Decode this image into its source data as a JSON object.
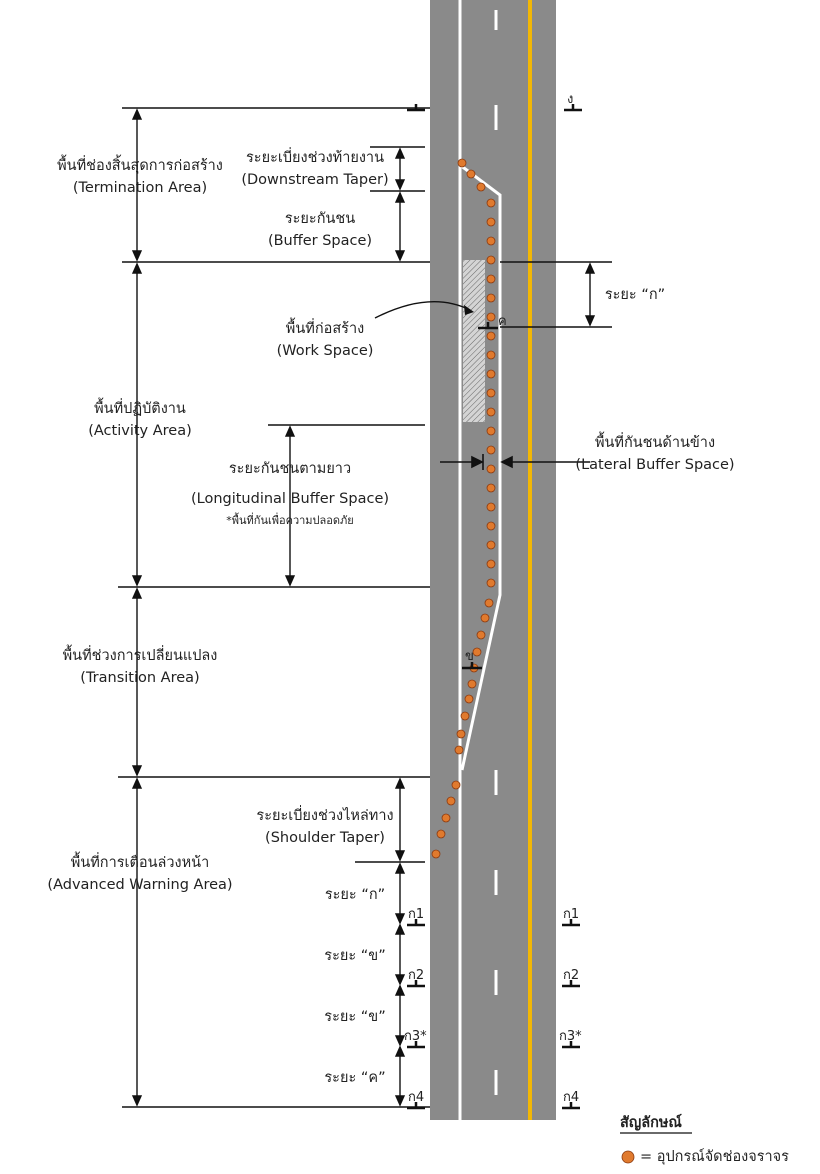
{
  "zones": {
    "termination": {
      "th": "พื้นที่ช่องสิ้นสุดการก่อสร้าง",
      "en": "(Termination Area)"
    },
    "activity": {
      "th": "พื้นที่ปฏิบัติงาน",
      "en": "(Activity Area)"
    },
    "transition": {
      "th": "พื้นที่ช่วงการเปลี่ยนแปลง",
      "en": "(Transition Area)"
    },
    "advanced": {
      "th": "พื้นที่การเตือนล่วงหน้า",
      "en": "(Advanced Warning Area)"
    }
  },
  "sub": {
    "downstream": {
      "th": "ระยะเบี่ยงช่วงท้ายงาน",
      "en": "(Downstream Taper)"
    },
    "buffer": {
      "th": "ระยะกันชน",
      "en": "(Buffer Space)"
    },
    "work": {
      "th": "พื้นที่ก่อสร้าง",
      "en": "(Work Space)"
    },
    "longitudinal": {
      "th": "ระยะกันชนตามยาว",
      "en": "(Longitudinal Buffer Space)",
      "note": "*พื้นที่กันเพื่อความปลอดภัย"
    },
    "lateral": {
      "th": "พื้นที่กันชนด้านข้าง",
      "en": "(Lateral Buffer Space)"
    },
    "shoulder": {
      "th": "ระยะเบี่ยงช่วงไหล่ทาง",
      "en": "(Shoulder Taper)"
    }
  },
  "distances": {
    "ka_right": "ระยะ “ก”",
    "ka": "ระยะ “ก”",
    "kho1": "ระยะ “ข”",
    "kho2": "ระยะ “ข”",
    "kho_k": "ระยะ “ค”"
  },
  "signs": {
    "ngo": "ง",
    "kho_mid": "ข",
    "kho_work": "ค",
    "left": [
      "ก1",
      "ก2",
      "ก3*",
      "ก4"
    ],
    "right": [
      "ก1",
      "ก2",
      "ก3*",
      "ก4"
    ]
  },
  "legend": {
    "title": "สัญลักษณ์",
    "item": "= อุปกรณ์จัดช่องจราจร",
    "device_color": "#e07a2e"
  },
  "colors": {
    "road": "#8a8a8a",
    "edge_line": "#ffffff",
    "center_line": "#f2b705",
    "work_space": "#c8c8c8"
  }
}
